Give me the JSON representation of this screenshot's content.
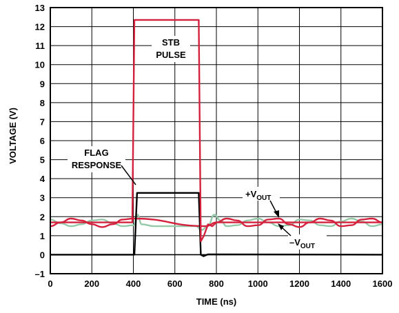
{
  "chart_data": {
    "type": "line",
    "title": "",
    "xlabel": "TIME (ns)",
    "ylabel": "VOLTAGE (V)",
    "xlim": [
      0,
      1600
    ],
    "ylim": [
      -1,
      13
    ],
    "x_ticks": [
      "0",
      "200",
      "400",
      "600",
      "800",
      "1000",
      "1200",
      "1400",
      "1600"
    ],
    "x_tick_values": [
      0,
      200,
      400,
      600,
      800,
      1000,
      1200,
      1400,
      1600
    ],
    "y_ticks": [
      "–1",
      "0",
      "1",
      "2",
      "3",
      "4",
      "5",
      "6",
      "7",
      "8",
      "9",
      "10",
      "11",
      "12",
      "13"
    ],
    "y_tick_values": [
      -1,
      0,
      1,
      2,
      3,
      4,
      5,
      6,
      7,
      8,
      9,
      10,
      11,
      12,
      13
    ],
    "grid": true,
    "colors": {
      "stb": "#d4213d",
      "flag": "#000000",
      "vout_neg": "#93c9a8",
      "grid": "#000000"
    },
    "annotations": {
      "stb_line1": "STB",
      "stb_line2": "PULSE",
      "flag_line1": "FLAG",
      "flag_line2": "RESPONSE",
      "vpos_prefix": "+V",
      "vpos_sub": "OUT",
      "vneg_prefix": "–V",
      "vneg_sub": "OUT"
    },
    "series": [
      {
        "id": "stb",
        "x": [
          0,
          395,
          405,
          715,
          725,
          740,
          760,
          780,
          800,
          1600
        ],
        "y": [
          1.7,
          1.7,
          12.35,
          12.35,
          0.7,
          1.0,
          1.6,
          1.5,
          1.7,
          1.7
        ]
      },
      {
        "id": "flag",
        "x": [
          0,
          405,
          418,
          715,
          725,
          738,
          760,
          1600
        ],
        "y": [
          0.0,
          0.0,
          3.25,
          3.25,
          0.0,
          -0.08,
          0.02,
          0.0
        ]
      },
      {
        "id": "vpos",
        "x": [
          0,
          50,
          100,
          150,
          200,
          250,
          300,
          350,
          400,
          750,
          800,
          850,
          900,
          950,
          1000,
          1050,
          1100,
          1150,
          1200,
          1250,
          1300,
          1350,
          1400,
          1450,
          1500,
          1550,
          1600
        ],
        "y": [
          1.5,
          1.7,
          1.9,
          1.8,
          1.6,
          1.45,
          1.6,
          1.85,
          1.9,
          1.5,
          1.7,
          1.9,
          1.8,
          1.5,
          1.55,
          1.85,
          1.9,
          1.6,
          1.45,
          1.7,
          1.9,
          1.8,
          1.5,
          1.55,
          1.85,
          1.9,
          1.7
        ]
      },
      {
        "id": "vneg",
        "x": [
          0,
          50,
          100,
          150,
          200,
          250,
          300,
          350,
          400,
          420,
          440,
          500,
          600,
          700,
          730,
          760,
          790,
          820,
          850,
          900,
          950,
          1000,
          1050,
          1100,
          1150,
          1200,
          1250,
          1300,
          1350,
          1400,
          1450,
          1500,
          1550,
          1600
        ],
        "y": [
          1.85,
          1.65,
          1.5,
          1.6,
          1.8,
          1.85,
          1.65,
          1.5,
          1.55,
          2.1,
          1.6,
          1.5,
          1.5,
          1.5,
          1.3,
          1.55,
          2.1,
          1.8,
          1.5,
          1.55,
          1.8,
          1.9,
          1.7,
          1.5,
          1.55,
          1.85,
          1.8,
          1.55,
          1.5,
          1.75,
          1.9,
          1.75,
          1.5,
          1.6
        ]
      }
    ]
  }
}
